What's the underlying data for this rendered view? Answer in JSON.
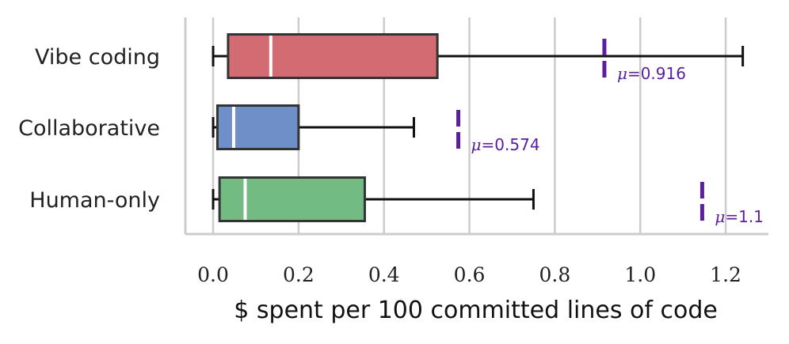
{
  "chart_data": {
    "type": "boxplot",
    "orientation": "horizontal",
    "xlabel": "$ spent per 100 committed lines of code",
    "xlim": [
      -0.065,
      1.3
    ],
    "x_ticks": [
      0.0,
      0.2,
      0.4,
      0.6,
      0.8,
      1.0,
      1.2
    ],
    "x_tick_labels": [
      "0.0",
      "0.2",
      "0.4",
      "0.6",
      "0.8",
      "1.0",
      "1.2"
    ],
    "grid": "vertical",
    "median_color": "#ffffff",
    "mean_color": "#5b1f9e",
    "mean_prefix": "μ=",
    "series": [
      {
        "name": "Vibe coding",
        "color": "#d36b72",
        "whisker_low": 0.0,
        "q1": 0.035,
        "median": 0.135,
        "q3": 0.525,
        "whisker_high": 1.24,
        "mean": 0.916,
        "mean_label": "0.916"
      },
      {
        "name": "Collaborative",
        "color": "#6f8fc9",
        "whisker_low": 0.0,
        "q1": 0.01,
        "median": 0.048,
        "q3": 0.2,
        "whisker_high": 0.47,
        "mean": 0.574,
        "mean_label": "0.574"
      },
      {
        "name": "Human-only",
        "color": "#72bb83",
        "whisker_low": 0.0,
        "q1": 0.015,
        "median": 0.075,
        "q3": 0.355,
        "whisker_high": 0.75,
        "mean": 1.145,
        "mean_label": "1.1"
      }
    ]
  }
}
